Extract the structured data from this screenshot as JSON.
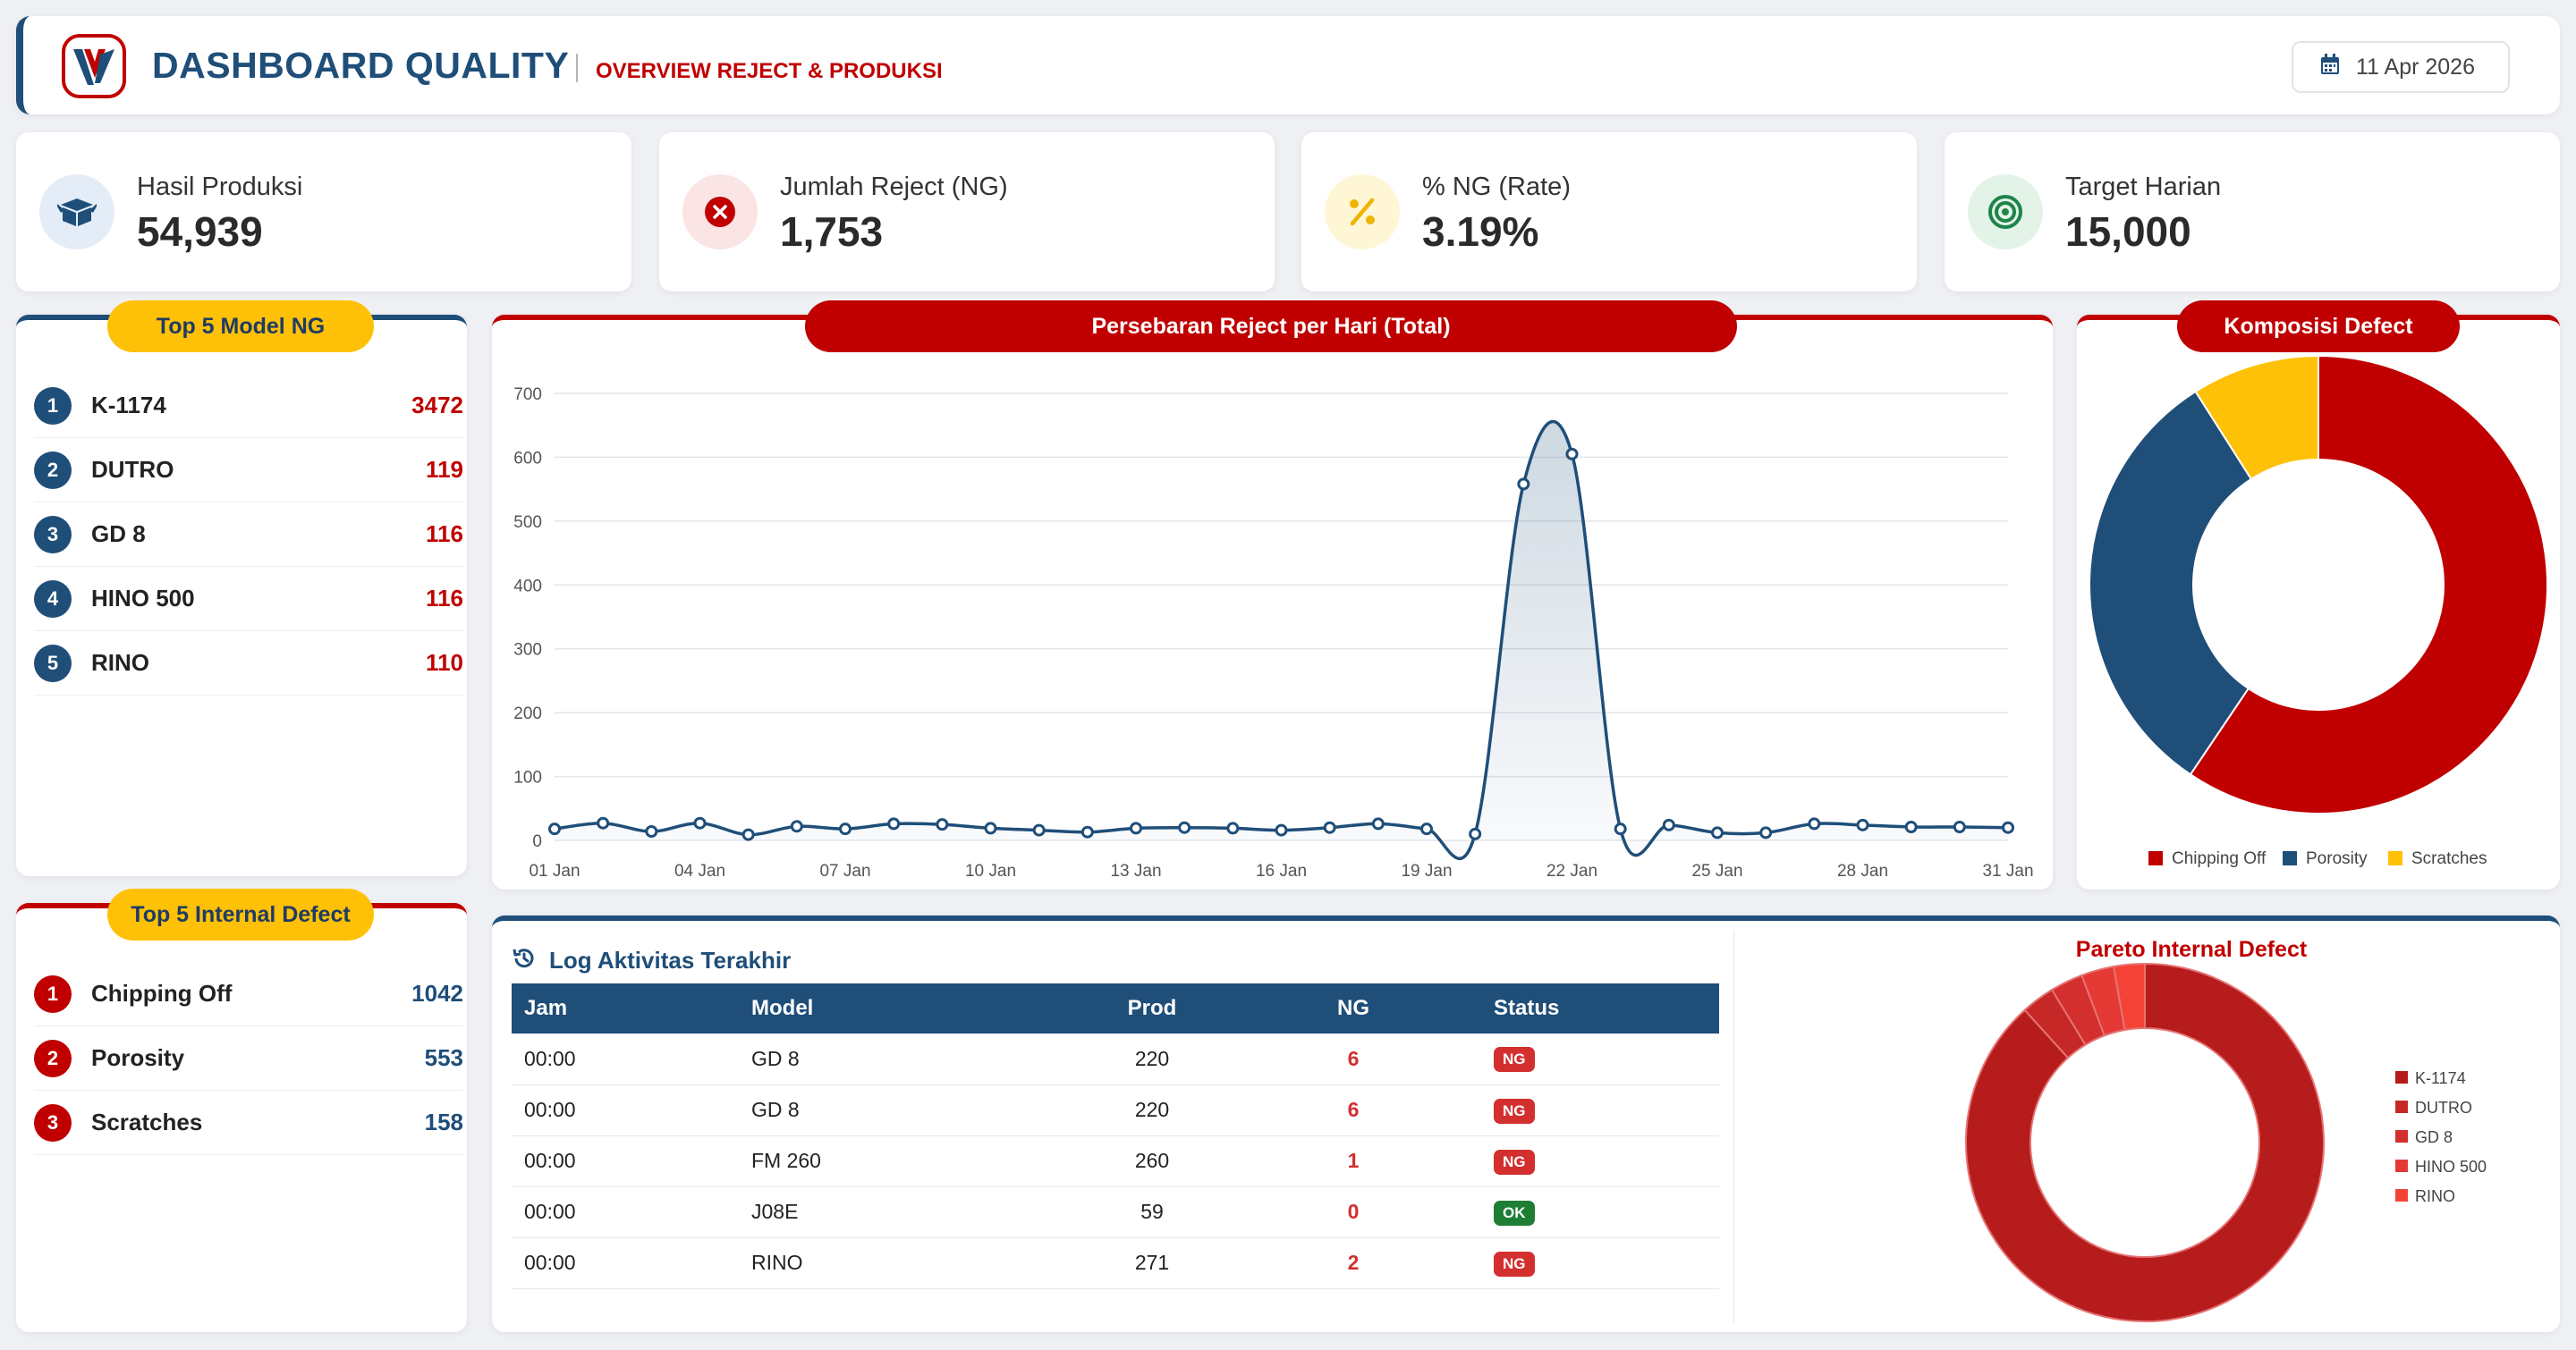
{
  "header": {
    "title": "DASHBOARD QUALITY",
    "subtitle": "OVERVIEW REJECT & PRODUKSI",
    "date": "11 Apr 2026"
  },
  "kpis": [
    {
      "label": "Hasil Produksi",
      "value": "54,939",
      "icon": "box-icon",
      "color": "#1f4e79",
      "bg": "#e4edf7"
    },
    {
      "label": "Jumlah Reject (NG)",
      "value": "1,753",
      "icon": "x-circle-icon",
      "color": "#c00000",
      "bg": "#fbe4e4"
    },
    {
      "label": "% NG (Rate)",
      "value": "3.19%",
      "icon": "percent-icon",
      "color": "#f0b400",
      "bg": "#fff6d6"
    },
    {
      "label": "Target Harian",
      "value": "15,000",
      "icon": "target-icon",
      "color": "#1e8449",
      "bg": "#e3f3e8"
    }
  ],
  "top_model": {
    "title": "Top 5 Model NG",
    "items": [
      {
        "rank": "1",
        "name": "K-1174",
        "value": "3472"
      },
      {
        "rank": "2",
        "name": "DUTRO",
        "value": "119"
      },
      {
        "rank": "3",
        "name": "GD 8",
        "value": "116"
      },
      {
        "rank": "4",
        "name": "HINO 500",
        "value": "116"
      },
      {
        "rank": "5",
        "name": "RINO",
        "value": "110"
      }
    ]
  },
  "top_defect": {
    "title": "Top 5 Internal Defect",
    "items": [
      {
        "rank": "1",
        "name": "Chipping Off",
        "value": "1042"
      },
      {
        "rank": "2",
        "name": "Porosity",
        "value": "553"
      },
      {
        "rank": "3",
        "name": "Scratches",
        "value": "158"
      }
    ]
  },
  "line_chart_title": "Persebaran Reject per Hari (Total)",
  "donut_title": "Komposisi Defect",
  "log": {
    "title": "Log Aktivitas Terakhir",
    "columns": [
      "Jam",
      "Model",
      "Prod",
      "NG",
      "Status"
    ],
    "rows": [
      {
        "jam": "00:00",
        "model": "GD 8",
        "prod": "220",
        "ng": "6",
        "status": "NG"
      },
      {
        "jam": "00:00",
        "model": "GD 8",
        "prod": "220",
        "ng": "6",
        "status": "NG"
      },
      {
        "jam": "00:00",
        "model": "FM 260",
        "prod": "260",
        "ng": "1",
        "status": "NG"
      },
      {
        "jam": "00:00",
        "model": "J08E",
        "prod": "59",
        "ng": "0",
        "status": "OK"
      },
      {
        "jam": "00:00",
        "model": "RINO",
        "prod": "271",
        "ng": "2",
        "status": "NG"
      }
    ]
  },
  "pareto_title": "Pareto Internal Defect",
  "chart_data": [
    {
      "type": "line",
      "title": "Persebaran Reject per Hari (Total)",
      "x": [
        "01 Jan",
        "02 Jan",
        "03 Jan",
        "04 Jan",
        "05 Jan",
        "06 Jan",
        "07 Jan",
        "08 Jan",
        "09 Jan",
        "10 Jan",
        "11 Jan",
        "12 Jan",
        "13 Jan",
        "14 Jan",
        "15 Jan",
        "16 Jan",
        "17 Jan",
        "18 Jan",
        "19 Jan",
        "20 Jan",
        "21 Jan",
        "22 Jan",
        "23 Jan",
        "24 Jan",
        "25 Jan",
        "26 Jan",
        "27 Jan",
        "28 Jan",
        "29 Jan",
        "30 Jan",
        "31 Jan"
      ],
      "xticks": [
        "01 Jan",
        "04 Jan",
        "07 Jan",
        "10 Jan",
        "13 Jan",
        "16 Jan",
        "19 Jan",
        "22 Jan",
        "25 Jan",
        "28 Jan",
        "31 Jan"
      ],
      "values": [
        18,
        27,
        14,
        27,
        9,
        22,
        18,
        26,
        25,
        19,
        16,
        13,
        19,
        20,
        19,
        16,
        20,
        26,
        18,
        10,
        558,
        605,
        18,
        24,
        12,
        12,
        26,
        24,
        21,
        21,
        20
      ],
      "ylim": [
        0,
        700
      ],
      "yticks": [
        0,
        100,
        200,
        300,
        400,
        500,
        600,
        700
      ],
      "color": "#1f4e79",
      "grid": true
    },
    {
      "type": "pie",
      "title": "Komposisi Defect",
      "labels": [
        "Chipping Off",
        "Porosity",
        "Scratches"
      ],
      "values": [
        1042,
        553,
        158
      ],
      "colors": [
        "#c00000",
        "#1f4e79",
        "#ffc107"
      ],
      "legend": "bottom"
    },
    {
      "type": "pie",
      "title": "Pareto Internal Defect",
      "labels": [
        "K-1174",
        "DUTRO",
        "GD 8",
        "HINO 500",
        "RINO"
      ],
      "values": [
        3472,
        119,
        116,
        116,
        110
      ],
      "colors": [
        "#b71c1c",
        "#c62828",
        "#d32f2f",
        "#e53935",
        "#f44336"
      ],
      "legend": "right"
    }
  ]
}
